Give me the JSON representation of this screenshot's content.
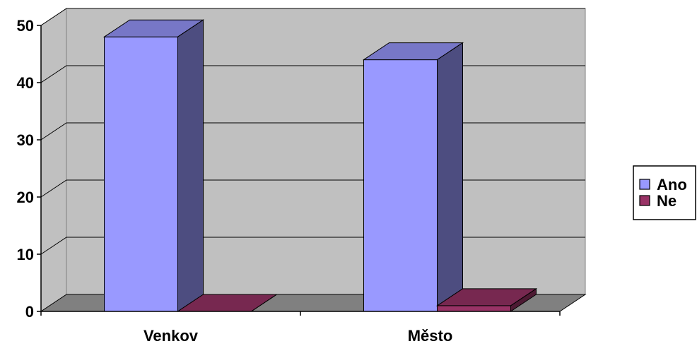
{
  "chart_data": {
    "type": "bar",
    "categories": [
      "Venkov",
      "Město"
    ],
    "series": [
      {
        "name": "Ano",
        "values": [
          48,
          44
        ],
        "color": "#9999ff"
      },
      {
        "name": "Ne",
        "values": [
          0,
          1
        ],
        "color": "#993366"
      }
    ],
    "ylim": [
      0,
      50
    ],
    "yticks": [
      "0",
      "10",
      "20",
      "30",
      "40",
      "50"
    ],
    "xlabel": "",
    "ylabel": "",
    "title": "",
    "grid": true,
    "legend_position": "right",
    "style": "3d-clustered-column",
    "wall_color": "#c0c0c0",
    "floor_color": "#808080"
  }
}
